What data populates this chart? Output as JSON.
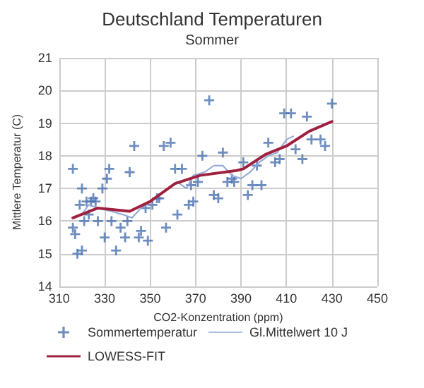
{
  "chart_data": {
    "type": "scatter",
    "title": "Deutschland Temperaturen",
    "subtitle": "Sommer",
    "xlabel": "CO2-Konzentration (ppm)",
    "ylabel": "Mittlere Temperatur (C)",
    "xlim": [
      310,
      450
    ],
    "xticks": [
      310,
      330,
      350,
      370,
      390,
      410,
      430,
      450
    ],
    "ylim": [
      14,
      21
    ],
    "yticks": [
      14,
      15,
      16,
      17,
      18,
      19,
      20,
      21
    ],
    "grid": true,
    "legend": "bottom",
    "marker": "cross",
    "series": [
      {
        "name": "Sommertemperatur",
        "type": "scatter",
        "color": "#4a72b0",
        "x": [
          316,
          316,
          317,
          318,
          319,
          320,
          320,
          321,
          322,
          323,
          324,
          325,
          326,
          327,
          329,
          331,
          332,
          330,
          333,
          335,
          337,
          339,
          340,
          341,
          343,
          345,
          346,
          348,
          349,
          351,
          353,
          354,
          356,
          357,
          359,
          361,
          362,
          364,
          367,
          368,
          369,
          371,
          373,
          376,
          378,
          380,
          382,
          384,
          386,
          387,
          391,
          393,
          395,
          397,
          399,
          402,
          405,
          407,
          409,
          412,
          414,
          417,
          419,
          421,
          425,
          427,
          430
        ],
        "values": [
          17.6,
          15.8,
          15.6,
          15.0,
          16.5,
          15.1,
          17.0,
          16.0,
          16.6,
          16.2,
          16.6,
          16.7,
          16.6,
          16.0,
          17.0,
          17.3,
          17.6,
          15.5,
          16.0,
          15.1,
          15.8,
          15.5,
          16.0,
          17.5,
          18.3,
          15.5,
          15.7,
          16.4,
          15.4,
          16.5,
          16.7,
          16.7,
          18.3,
          15.8,
          18.4,
          17.6,
          16.2,
          17.6,
          16.5,
          17.1,
          16.6,
          17.2,
          18.0,
          19.7,
          16.8,
          16.7,
          18.1,
          17.2,
          17.3,
          17.2,
          17.8,
          16.8,
          17.1,
          17.7,
          17.1,
          18.4,
          17.8,
          17.9,
          19.3,
          19.3,
          18.2,
          17.9,
          19.2,
          18.5,
          18.5,
          18.3,
          19.6
        ]
      },
      {
        "name": "Gl.Mittelwert 10 J",
        "type": "line",
        "color": "#8fa8d8",
        "marker": "none",
        "x": [
          320,
          323,
          327,
          333,
          338,
          342,
          346,
          350,
          354,
          358,
          362,
          366,
          369,
          374,
          378,
          382,
          386,
          390,
          394,
          398,
          402,
          406,
          410,
          413
        ],
        "values": [
          16.2,
          16.5,
          16.4,
          16.3,
          16.2,
          16.1,
          16.4,
          16.6,
          16.8,
          17.0,
          17.2,
          17.0,
          17.4,
          17.5,
          17.7,
          17.7,
          17.4,
          17.3,
          17.5,
          17.8,
          18.0,
          18.1,
          18.5,
          18.6
        ]
      },
      {
        "name": "LOWESS-FIT",
        "type": "line",
        "color": "#a0203f",
        "marker": "none",
        "x": [
          316,
          327,
          341,
          350,
          361,
          372,
          388,
          391,
          401,
          410,
          420,
          430
        ],
        "values": [
          16.1,
          16.4,
          16.3,
          16.6,
          17.15,
          17.4,
          17.55,
          17.6,
          18.05,
          18.3,
          18.75,
          19.05
        ]
      }
    ]
  }
}
